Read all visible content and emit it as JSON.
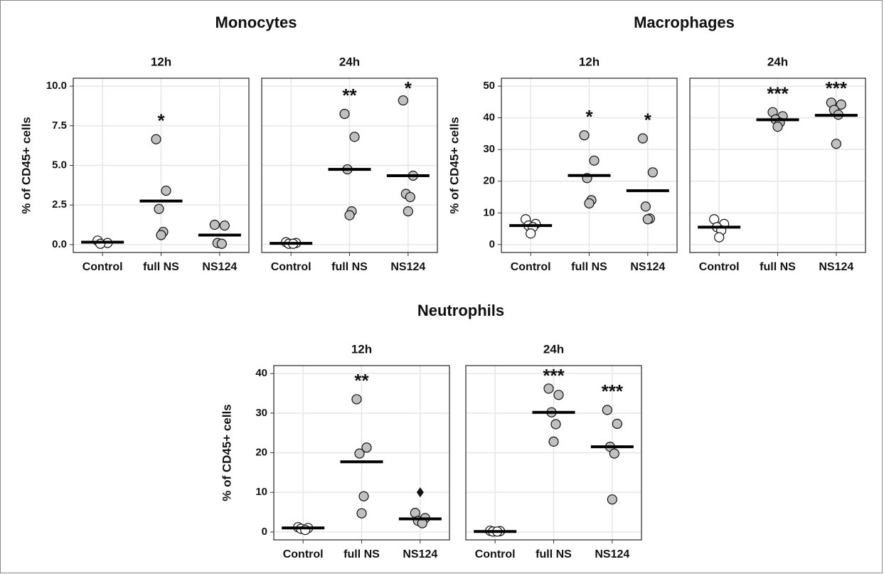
{
  "chart_data": [
    {
      "type": "strip",
      "title": "Monocytes",
      "ylabel": "% of CD45+ cells",
      "ylim": [
        -0.5,
        10.5
      ],
      "yticks": [
        {
          "value": 0,
          "label": "0.0"
        },
        2.5,
        {
          "value": 5,
          "label": "5.0"
        },
        7.5,
        {
          "value": 10,
          "label": "10.0"
        }
      ],
      "grid": true,
      "panels": [
        {
          "title": "12h",
          "groups": [
            {
              "category": "Control",
              "color": "#ffffff",
              "points": [
                0.25,
                0.1,
                0.05
              ],
              "mean": 0.15
            },
            {
              "category": "full NS",
              "color": "#c0c0c0",
              "points": [
                6.65,
                3.4,
                2.25,
                0.8,
                0.6
              ],
              "mean": 2.75,
              "annotation": "*"
            },
            {
              "category": "NS124",
              "color": "#c0c0c0",
              "points": [
                1.25,
                1.2,
                0.1,
                0.05
              ],
              "mean": 0.6
            }
          ]
        },
        {
          "title": "24h",
          "groups": [
            {
              "category": "Control",
              "color": "#ffffff",
              "points": [
                0.15,
                0.1,
                0.05,
                0.05
              ],
              "mean": 0.08
            },
            {
              "category": "full NS",
              "color": "#c0c0c0",
              "points": [
                8.25,
                6.8,
                4.75,
                2.1,
                1.85
              ],
              "mean": 4.75,
              "annotation": "**"
            },
            {
              "category": "NS124",
              "color": "#c0c0c0",
              "points": [
                9.1,
                4.35,
                3.2,
                3.0,
                2.1
              ],
              "mean": 4.35,
              "annotation": "*"
            }
          ]
        }
      ]
    },
    {
      "type": "strip",
      "title": "Macrophages",
      "ylabel": "% of CD45+ cells",
      "ylim": [
        -2.5,
        52.5
      ],
      "yticks": [
        0,
        10,
        20,
        30,
        40,
        50
      ],
      "grid": true,
      "panels": [
        {
          "title": "12h",
          "groups": [
            {
              "category": "Control",
              "color": "#ffffff",
              "points": [
                8,
                6.5,
                6,
                5.5,
                3.5
              ],
              "mean": 6
            },
            {
              "category": "full NS",
              "color": "#c0c0c0",
              "points": [
                34.5,
                26.5,
                21,
                14,
                13
              ],
              "mean": 21.8,
              "annotation": "*"
            },
            {
              "category": "NS124",
              "color": "#c0c0c0",
              "points": [
                33.5,
                22.8,
                12,
                8.2,
                8
              ],
              "mean": 17,
              "annotation": "*"
            }
          ]
        },
        {
          "title": "24h",
          "groups": [
            {
              "category": "Control",
              "color": "#ffffff",
              "points": [
                8,
                6.5,
                5.5,
                4.5,
                2.3
              ],
              "mean": 5.5
            },
            {
              "category": "full NS",
              "color": "#c0c0c0",
              "points": [
                41.8,
                40.5,
                39.5,
                38.5,
                37.2
              ],
              "mean": 39.4,
              "annotation": "***"
            },
            {
              "category": "NS124",
              "color": "#c0c0c0",
              "points": [
                44.8,
                44.2,
                42.5,
                41,
                31.8
              ],
              "mean": 40.8,
              "annotation": "***"
            }
          ]
        }
      ]
    },
    {
      "type": "strip",
      "title": "Neutrophils",
      "ylabel": "% of CD45+ cells",
      "ylim": [
        -2,
        42
      ],
      "yticks": [
        0,
        10,
        20,
        30,
        40
      ],
      "grid": true,
      "panels": [
        {
          "title": "12h",
          "groups": [
            {
              "category": "Control",
              "color": "#ffffff",
              "points": [
                1.2,
                1.0,
                0.8,
                0.5
              ],
              "mean": 1.0
            },
            {
              "category": "full NS",
              "color": "#c0c0c0",
              "points": [
                33.5,
                21.3,
                19.8,
                9,
                4.7
              ],
              "mean": 17.7,
              "annotation": "**"
            },
            {
              "category": "NS124",
              "color": "#c0c0c0",
              "points": [
                4.8,
                3.5,
                2.8,
                2.2
              ],
              "mean": 3.3,
              "outlier": 10
            }
          ]
        },
        {
          "title": "24h",
          "groups": [
            {
              "category": "Control",
              "color": "#ffffff",
              "points": [
                0.3,
                0.2,
                0.1,
                0.1
              ],
              "mean": 0.1
            },
            {
              "category": "full NS",
              "color": "#c0c0c0",
              "points": [
                36.2,
                34.6,
                30.2,
                27.2,
                22.8
              ],
              "mean": 30.2,
              "annotation": "***"
            },
            {
              "category": "NS124",
              "color": "#c0c0c0",
              "points": [
                30.8,
                27.3,
                21.5,
                19.8,
                8.2
              ],
              "mean": 21.5,
              "annotation": "***"
            }
          ]
        }
      ]
    }
  ]
}
